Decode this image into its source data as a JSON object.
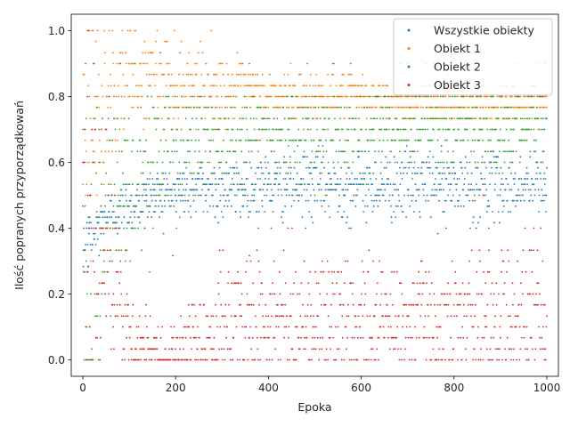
{
  "chart_data": {
    "type": "scatter",
    "title": "",
    "xlabel": "Epoka",
    "ylabel": "Ilość popranych przyporządkowań",
    "xlim": [
      -25,
      1025
    ],
    "ylim": [
      -0.05,
      1.05
    ],
    "xticks": [
      0,
      200,
      400,
      600,
      800,
      1000
    ],
    "yticks": [
      0.0,
      0.2,
      0.4,
      0.6,
      0.8,
      1.0
    ],
    "xtick_labels": [
      "0",
      "200",
      "400",
      "600",
      "800",
      "1000"
    ],
    "ytick_labels": [
      "0.0",
      "0.2",
      "0.4",
      "0.6",
      "0.8",
      "1.0"
    ],
    "grid": false,
    "legend_position": "top-right",
    "epochs": 1000,
    "series": [
      {
        "name": "Wszystkie obiekty",
        "color": "#1f77b4",
        "x": [
          0,
          5,
          10,
          20,
          30,
          40,
          50,
          60,
          70,
          80,
          100,
          120,
          150,
          200,
          250,
          300,
          350,
          400,
          450,
          500,
          550,
          600,
          650,
          700,
          750,
          800,
          850,
          900,
          950,
          1000
        ],
        "y": [
          0.32,
          0.33,
          0.35,
          0.37,
          0.39,
          0.41,
          0.43,
          0.44,
          0.45,
          0.46,
          0.47,
          0.48,
          0.5,
          0.51,
          0.52,
          0.52,
          0.52,
          0.53,
          0.53,
          0.53,
          0.53,
          0.53,
          0.53,
          0.53,
          0.53,
          0.53,
          0.53,
          0.53,
          0.53,
          0.53
        ],
        "spread": [
          0.05,
          0.05,
          0.05,
          0.05,
          0.05,
          0.05,
          0.05,
          0.04,
          0.04,
          0.04,
          0.04,
          0.04,
          0.04,
          0.05,
          0.05,
          0.05,
          0.05,
          0.05,
          0.05,
          0.05,
          0.05,
          0.05,
          0.05,
          0.05,
          0.05,
          0.05,
          0.05,
          0.05,
          0.05,
          0.05
        ],
        "levels": [],
        "quantized": false
      },
      {
        "name": "Obiekt 1",
        "color": "#ff7f0e",
        "x": [
          0,
          20,
          50,
          100,
          200,
          300,
          400,
          500,
          600,
          700,
          800,
          900,
          1000
        ],
        "y": [
          0.55,
          0.7,
          0.8,
          0.85,
          0.85,
          0.82,
          0.8,
          0.8,
          0.8,
          0.78,
          0.78,
          0.78,
          0.78
        ],
        "spread": [
          0.35,
          0.25,
          0.12,
          0.07,
          0.07,
          0.05,
          0.04,
          0.04,
          0.03,
          0.03,
          0.03,
          0.03,
          0.03
        ],
        "levels": [
          0.0,
          0.1,
          0.133,
          0.2,
          0.267,
          0.3,
          0.333,
          0.4,
          0.467,
          0.5,
          0.533,
          0.6,
          0.633,
          0.667,
          0.7,
          0.733,
          0.767,
          0.8,
          0.833,
          0.867,
          0.9,
          0.933,
          0.967,
          1.0
        ],
        "quantized": true
      },
      {
        "name": "Obiekt 2",
        "color": "#2ca02c",
        "x": [
          0,
          20,
          50,
          100,
          200,
          300,
          400,
          500,
          600,
          700,
          800,
          900,
          1000
        ],
        "y": [
          0.3,
          0.35,
          0.4,
          0.55,
          0.65,
          0.68,
          0.68,
          0.68,
          0.7,
          0.7,
          0.7,
          0.7,
          0.7
        ],
        "spread": [
          0.3,
          0.3,
          0.25,
          0.15,
          0.1,
          0.08,
          0.08,
          0.08,
          0.07,
          0.07,
          0.07,
          0.07,
          0.07
        ],
        "levels": [
          0.0,
          0.1,
          0.133,
          0.2,
          0.267,
          0.3,
          0.333,
          0.4,
          0.433,
          0.467,
          0.5,
          0.533,
          0.567,
          0.6,
          0.633,
          0.667,
          0.7,
          0.733,
          0.767,
          0.8,
          0.9
        ],
        "quantized": true
      },
      {
        "name": "Obiekt 3",
        "color": "#d62728",
        "x": [
          0,
          20,
          50,
          100,
          150,
          200,
          300,
          400,
          500,
          600,
          700,
          800,
          900,
          1000
        ],
        "y": [
          0.7,
          0.55,
          0.35,
          0.05,
          0.02,
          0.02,
          0.1,
          0.13,
          0.12,
          0.13,
          0.12,
          0.13,
          0.14,
          0.14
        ],
        "spread": [
          0.3,
          0.3,
          0.2,
          0.08,
          0.05,
          0.05,
          0.1,
          0.1,
          0.1,
          0.1,
          0.1,
          0.1,
          0.12,
          0.12
        ],
        "levels": [
          0.0,
          0.033,
          0.067,
          0.1,
          0.133,
          0.167,
          0.2,
          0.233,
          0.267,
          0.3,
          0.333,
          0.4,
          0.5,
          0.6,
          0.7,
          0.8,
          0.9,
          1.0
        ],
        "quantized": true
      }
    ]
  }
}
